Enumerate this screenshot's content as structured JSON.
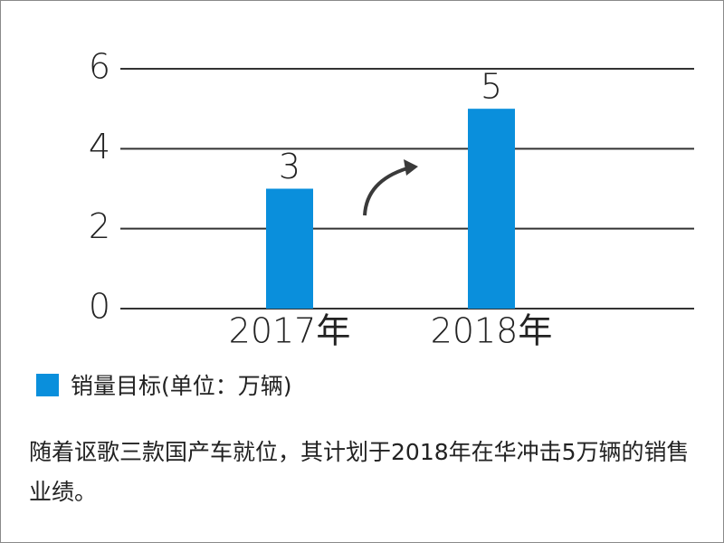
{
  "chart_data": {
    "type": "bar",
    "categories": [
      "2017年",
      "2018年"
    ],
    "series": [
      {
        "name": "销量目标(单位：万辆)",
        "color": "#0a8fdc",
        "values": [
          3,
          5
        ]
      }
    ],
    "ylim": [
      0,
      6
    ],
    "yticks": [
      0,
      2,
      4,
      6
    ],
    "grid": true,
    "caption": "随着讴歌三款国产车就位，其计划于2018年在华冲击5万辆的销售业绩。"
  }
}
